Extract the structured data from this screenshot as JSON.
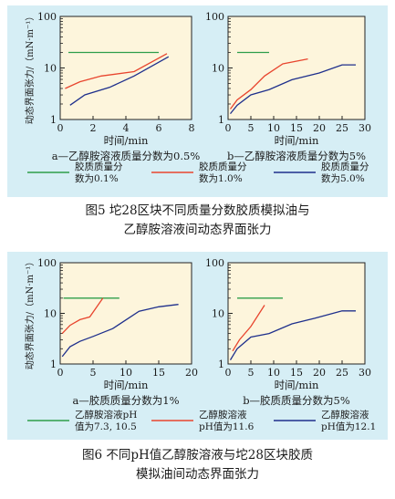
{
  "figure5": {
    "caption_line1": "图5   坨28区块不同质量分数胶质模拟油与",
    "caption_line2": "乙醇胺溶液间动态界面张力",
    "legend": [
      "胶质质量分\n数为0.1%",
      "胶质质量分\n数为1.0%",
      "胶质质量分\n数为5.0%"
    ]
  },
  "figure6": {
    "caption_line1": "图6   不同pH值乙醇胺溶液与坨28区块胶质",
    "caption_line2": "模拟油间动态界面张力",
    "legend": [
      "乙醇胺溶液pH\n值为7.3, 10.5",
      "乙醇胺溶液\npH值为11.6",
      "乙醇胺溶液\npH值为12.1"
    ]
  },
  "colors": {
    "green": "#2e9e4a",
    "red": "#e8452e",
    "blue": "#1e2f8c",
    "background": "#d6eef5",
    "plot": "#fdf5dc"
  },
  "chart_data": [
    {
      "type": "line",
      "subtitle": "a—乙醇胺溶液质量分数为0.5%",
      "xlabel": "时间/min",
      "ylabel": "动态界面张力/（mN·m⁻¹）",
      "xlim": [
        0,
        8
      ],
      "ylim": [
        1,
        100
      ],
      "yscale": "log",
      "xticks": [
        0,
        2,
        4,
        6,
        8
      ],
      "yticks": [
        1,
        10,
        100
      ],
      "series": [
        {
          "name": "胶质质量分数为0.1%",
          "color": "green",
          "points": [
            [
              0.5,
              20
            ],
            [
              6,
              20
            ]
          ]
        },
        {
          "name": "胶质质量分数为1.0%",
          "color": "red",
          "points": [
            [
              0.3,
              4
            ],
            [
              1.2,
              5.4
            ],
            [
              2.5,
              7
            ],
            [
              4.5,
              8.5
            ],
            [
              6.5,
              19
            ]
          ]
        },
        {
          "name": "胶质质量分数为5.0%",
          "color": "blue",
          "points": [
            [
              0.6,
              1.9
            ],
            [
              1.5,
              3
            ],
            [
              3,
              4.2
            ],
            [
              4.5,
              7
            ],
            [
              6.6,
              16.5
            ]
          ]
        }
      ]
    },
    {
      "type": "line",
      "subtitle": "b—乙醇胺溶液质量分数为5%",
      "xlabel": "时间/min",
      "ylabel": "",
      "xlim": [
        0,
        30
      ],
      "ylim": [
        1,
        100
      ],
      "yscale": "log",
      "xticks": [
        0,
        5,
        10,
        15,
        20,
        25,
        30
      ],
      "yticks": [
        1,
        10,
        100
      ],
      "series": [
        {
          "name": "胶质质量分数为0.1%",
          "color": "green",
          "points": [
            [
              2,
              20
            ],
            [
              9,
              20
            ]
          ]
        },
        {
          "name": "胶质质量分数为1.0%",
          "color": "red",
          "points": [
            [
              0.5,
              1.6
            ],
            [
              2,
              2.4
            ],
            [
              5,
              3.8
            ],
            [
              8,
              7
            ],
            [
              12,
              12
            ],
            [
              17.5,
              15
            ]
          ]
        },
        {
          "name": "胶质质量分数为5.0%",
          "color": "blue",
          "points": [
            [
              0.5,
              1.3
            ],
            [
              2,
              1.9
            ],
            [
              5,
              3
            ],
            [
              9,
              3.8
            ],
            [
              14,
              5.9
            ],
            [
              20,
              8
            ],
            [
              25,
              11.5
            ],
            [
              28,
              11.5
            ]
          ]
        }
      ]
    },
    {
      "type": "line",
      "subtitle": "a—胶质质量分数为1%",
      "xlabel": "时间/min",
      "ylabel": "动态界面张力/（mN·m⁻¹）",
      "xlim": [
        0,
        20
      ],
      "ylim": [
        1,
        100
      ],
      "yscale": "log",
      "xticks": [
        0,
        5,
        10,
        15,
        20
      ],
      "yticks": [
        1,
        10,
        100
      ],
      "series": [
        {
          "name": "乙醇胺溶液pH值为7.3, 10.5",
          "color": "green",
          "points": [
            [
              0.5,
              20
            ],
            [
              9,
              20
            ]
          ]
        },
        {
          "name": "乙醇胺溶液pH值为11.6",
          "color": "red",
          "points": [
            [
              0.3,
              4
            ],
            [
              1.5,
              5.8
            ],
            [
              3,
              7.5
            ],
            [
              4.5,
              8.5
            ],
            [
              6.5,
              20
            ]
          ]
        },
        {
          "name": "乙醇胺溶液pH值为12.1",
          "color": "blue",
          "points": [
            [
              0.3,
              1.4
            ],
            [
              1.5,
              2.2
            ],
            [
              3,
              2.8
            ],
            [
              5,
              3.5
            ],
            [
              8,
              5
            ],
            [
              12,
              11
            ],
            [
              15,
              13.5
            ],
            [
              18,
              15
            ]
          ]
        }
      ]
    },
    {
      "type": "line",
      "subtitle": "b—胶质质量分数为5%",
      "xlabel": "时间/min",
      "ylabel": "",
      "xlim": [
        0,
        30
      ],
      "ylim": [
        1,
        100
      ],
      "yscale": "log",
      "xticks": [
        0,
        5,
        10,
        15,
        20,
        25,
        30
      ],
      "yticks": [
        1,
        10,
        100
      ],
      "series": [
        {
          "name": "乙醇胺溶液pH值为7.3, 10.5",
          "color": "green",
          "points": [
            [
              2,
              20
            ],
            [
              12,
              20
            ]
          ]
        },
        {
          "name": "乙醇胺溶液pH值为11.6",
          "color": "red",
          "points": [
            [
              1,
              1.8
            ],
            [
              2.5,
              3
            ],
            [
              5,
              5.5
            ],
            [
              8,
              14.5
            ]
          ]
        },
        {
          "name": "乙醇胺溶液pH值为12.1",
          "color": "blue",
          "points": [
            [
              0.5,
              1.2
            ],
            [
              2,
              2
            ],
            [
              5,
              3.4
            ],
            [
              9,
              4
            ],
            [
              14,
              6.2
            ],
            [
              19,
              8
            ],
            [
              25,
              11.2
            ],
            [
              28,
              11.2
            ]
          ]
        }
      ]
    }
  ]
}
